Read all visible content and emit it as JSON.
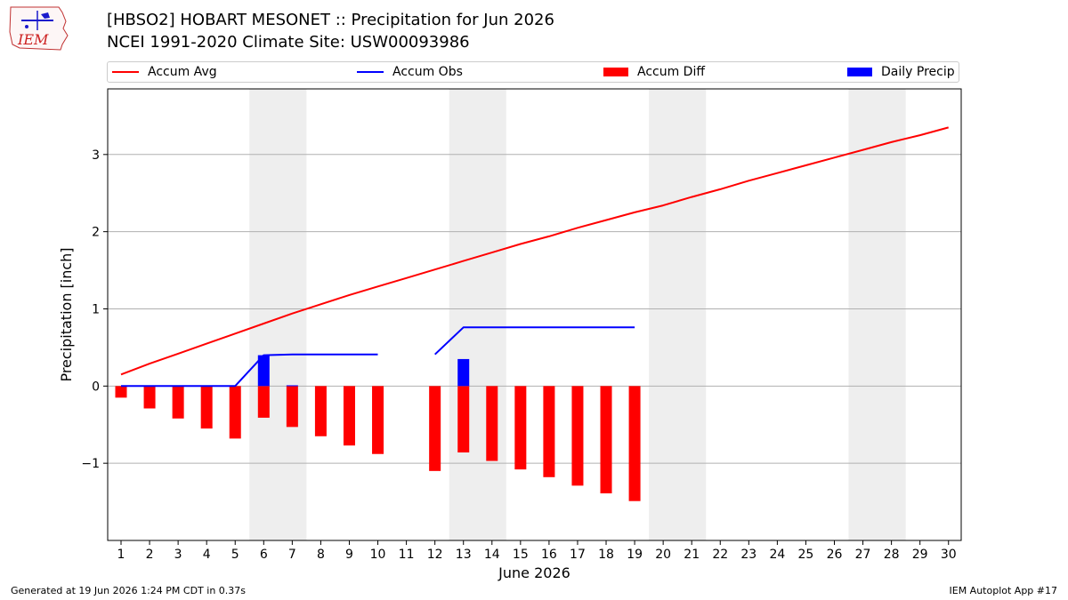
{
  "header": {
    "title_line1": "[HBSO2] HOBART MESONET :: Precipitation for Jun 2026",
    "title_line2": "NCEI 1991-2020 Climate Site: USW00093986",
    "logo_text": "IEM"
  },
  "footer": {
    "generated": "Generated at 19 Jun 2026 1:24 PM CDT in 0.37s",
    "app": "IEM Autoplot App #17"
  },
  "colors": {
    "avg": "#ff0000",
    "obs": "#0000ff",
    "diff": "#ff0000",
    "daily": "#0000ff",
    "weekend_shade": "#eeeeee",
    "grid": "#b0b0b0"
  },
  "chart_data": {
    "type": "bar",
    "title": "[HBSO2] HOBART MESONET :: Precipitation for Jun 2026",
    "subtitle": "NCEI 1991-2020 Climate Site: USW00093986",
    "xlabel": "June 2026",
    "ylabel": "Precipitation [inch]",
    "ylim": [
      -2.0,
      3.85
    ],
    "yticks": [
      -1,
      0,
      1,
      2,
      3
    ],
    "ytick_labels": [
      "−1",
      "0",
      "1",
      "2",
      "3"
    ],
    "x": [
      1,
      2,
      3,
      4,
      5,
      6,
      7,
      8,
      9,
      10,
      11,
      12,
      13,
      14,
      15,
      16,
      17,
      18,
      19,
      20,
      21,
      22,
      23,
      24,
      25,
      26,
      27,
      28,
      29,
      30
    ],
    "grid": "horizontal",
    "legend_position": "top",
    "shaded_days": [
      [
        6,
        7
      ],
      [
        13,
        14
      ],
      [
        20,
        21
      ],
      [
        27,
        28
      ]
    ],
    "series": [
      {
        "name": "Accum Avg",
        "kind": "line",
        "values": [
          0.15,
          0.29,
          0.42,
          0.55,
          0.68,
          0.81,
          0.94,
          1.06,
          1.18,
          1.29,
          1.4,
          1.51,
          1.62,
          1.73,
          1.84,
          1.94,
          2.05,
          2.15,
          2.25,
          2.34,
          2.45,
          2.55,
          2.66,
          2.76,
          2.86,
          2.96,
          3.06,
          3.16,
          3.25,
          3.35
        ]
      },
      {
        "name": "Accum Obs",
        "kind": "line",
        "values": [
          0,
          0,
          0,
          0,
          0,
          0.4,
          0.41,
          0.41,
          0.41,
          0.41,
          null,
          0.41,
          0.76,
          0.76,
          0.76,
          0.76,
          0.76,
          0.76,
          0.76,
          null,
          null,
          null,
          null,
          null,
          null,
          null,
          null,
          null,
          null,
          null
        ]
      },
      {
        "name": "Accum Diff",
        "kind": "bar",
        "values": [
          -0.15,
          -0.29,
          -0.42,
          -0.55,
          -0.68,
          -0.41,
          -0.53,
          -0.65,
          -0.77,
          -0.88,
          null,
          -1.1,
          -0.86,
          -0.97,
          -1.08,
          -1.18,
          -1.29,
          -1.39,
          -1.49,
          null,
          null,
          null,
          null,
          null,
          null,
          null,
          null,
          null,
          null,
          null
        ]
      },
      {
        "name": "Daily Precip",
        "kind": "bar",
        "values": [
          0,
          0,
          0,
          0,
          0,
          0.4,
          0.01,
          0,
          0,
          0,
          null,
          0,
          0.35,
          0,
          0,
          0,
          0,
          0,
          0,
          null,
          null,
          null,
          null,
          null,
          null,
          null,
          null,
          null,
          null,
          null
        ]
      }
    ]
  }
}
